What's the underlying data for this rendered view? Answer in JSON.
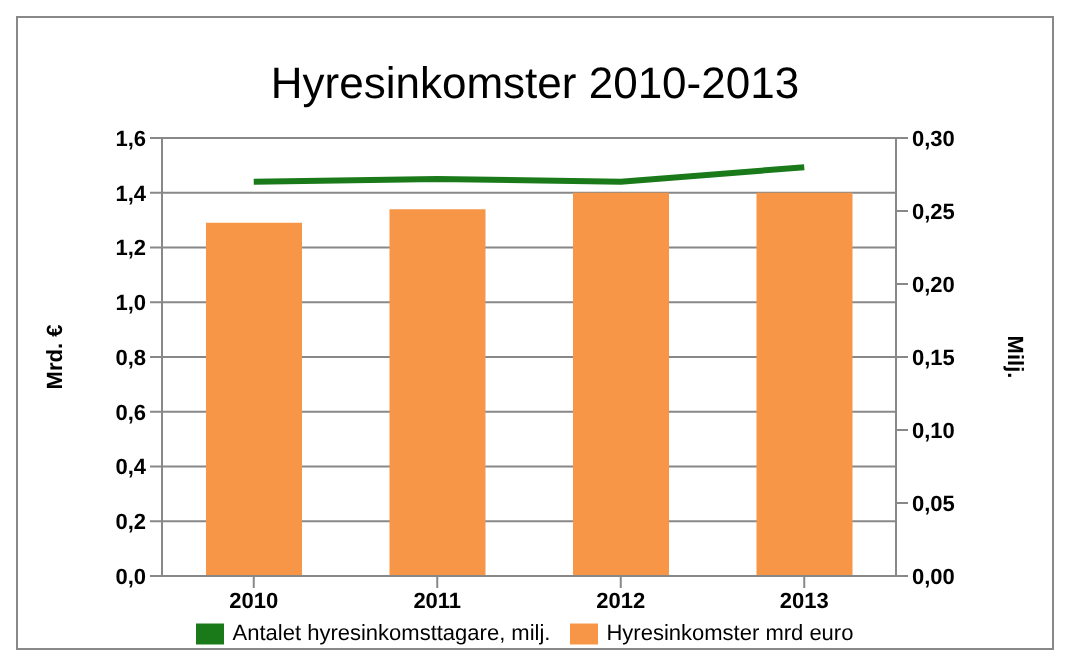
{
  "chart_data": {
    "type": "bar",
    "title": "Hyresinkomster 2010-2013",
    "ylabel": "Mrd. €",
    "y2label": "Milj.",
    "categories": [
      "2010",
      "2011",
      "2012",
      "2013"
    ],
    "series": [
      {
        "name": "Hyresinkomster mrd euro",
        "color": "#f79646",
        "values": [
          1.29,
          1.34,
          1.4,
          1.4
        ]
      },
      {
        "name": "Antalet hyresinkomsttagare, milj.",
        "type": "line",
        "axis": "y2",
        "color": "#1a7a1a",
        "values": [
          0.27,
          0.272,
          0.27,
          0.28
        ]
      }
    ],
    "ylim": [
      0,
      1.6
    ],
    "yticks": [
      {
        "value": 0,
        "label": "0,0"
      },
      {
        "value": 0.2,
        "label": "0,2"
      },
      {
        "value": 0.4,
        "label": "0,4"
      },
      {
        "value": 0.6,
        "label": "0,6"
      },
      {
        "value": 0.8,
        "label": "0,8"
      },
      {
        "value": 1,
        "label": "1,0"
      },
      {
        "value": 1.2,
        "label": "1,2"
      },
      {
        "value": 1.4,
        "label": "1,4"
      },
      {
        "value": 1.6,
        "label": "1,6"
      }
    ],
    "y2lim": [
      0,
      0.3
    ],
    "y2ticks": [
      {
        "value": 0,
        "label": "0,00"
      },
      {
        "value": 0.05,
        "label": "0,05"
      },
      {
        "value": 0.1,
        "label": "0,10"
      },
      {
        "value": 0.15,
        "label": "0,15"
      },
      {
        "value": 0.2,
        "label": "0,20"
      },
      {
        "value": 0.25,
        "label": "0,25"
      },
      {
        "value": 0.3,
        "label": "0,30"
      }
    ],
    "grid": "y",
    "legend": "bottom",
    "marker": "none"
  }
}
